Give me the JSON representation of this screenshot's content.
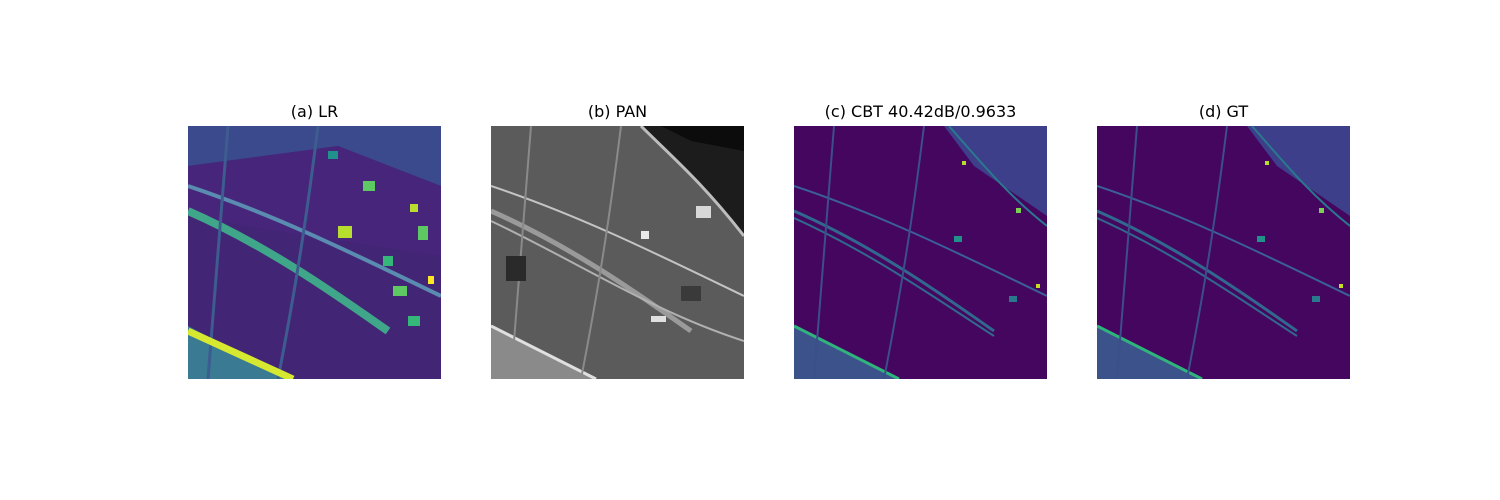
{
  "figure": {
    "panels": [
      {
        "title": "(a) LR",
        "colormap": "viridis"
      },
      {
        "title": "(b) PAN",
        "colormap": "gray"
      },
      {
        "title": "(c) CBT 40.42dB/0.9633",
        "colormap": "viridis"
      },
      {
        "title": "(d) GT",
        "colormap": "viridis"
      }
    ]
  },
  "colors": {
    "viridis_dark": "#440154",
    "viridis_mid": "#3b528b",
    "viridis_teal": "#21918c",
    "viridis_green": "#5ec962",
    "viridis_yellow": "#fde725",
    "gray_dark": "#1a1a1a",
    "gray_mid": "#6e6e6e",
    "gray_light": "#d8d8d8"
  }
}
